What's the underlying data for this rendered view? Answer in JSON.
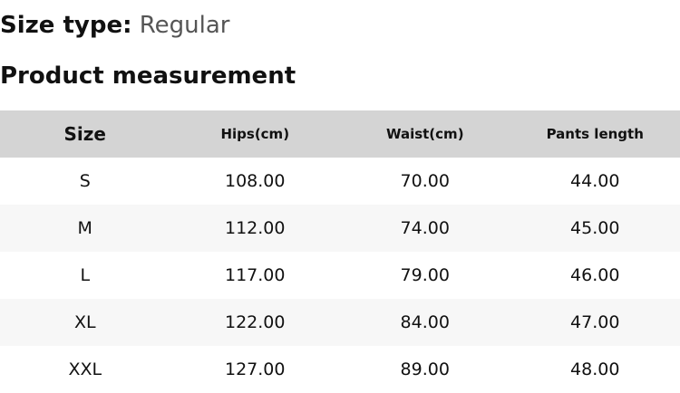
{
  "size_type": {
    "label": "Size type:",
    "value": "Regular"
  },
  "heading": "Product measurement",
  "table": {
    "headers": [
      "Size",
      "Hips(cm)",
      "Waist(cm)",
      "Pants length"
    ],
    "rows": [
      [
        "S",
        "108.00",
        "70.00",
        "44.00"
      ],
      [
        "M",
        "112.00",
        "74.00",
        "45.00"
      ],
      [
        "L",
        "117.00",
        "79.00",
        "46.00"
      ],
      [
        "XL",
        "122.00",
        "84.00",
        "47.00"
      ],
      [
        "XXL",
        "127.00",
        "89.00",
        "48.00"
      ]
    ]
  }
}
